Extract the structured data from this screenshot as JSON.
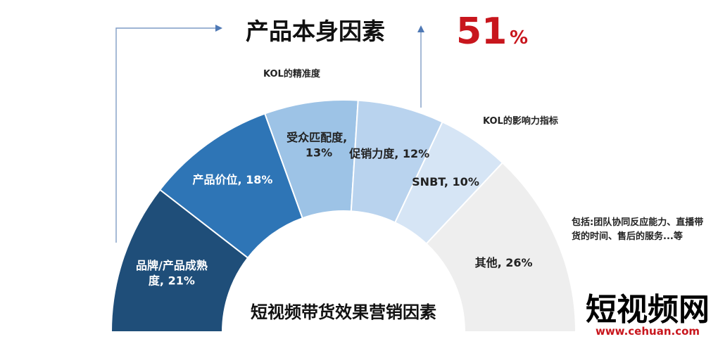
{
  "chart_data": {
    "type": "pie",
    "title": "短视频带货效果营销因素",
    "subtitle": "产品本身因素",
    "highlight": {
      "number": "51",
      "unit": "%"
    },
    "slices": [
      {
        "label": "品牌/产品成熟度, 21%",
        "value": 21,
        "color": "#1f4e79",
        "text_color": "#ffffff"
      },
      {
        "label": "产品价位, 18%",
        "value": 18,
        "color": "#2e75b6",
        "text_color": "#ffffff"
      },
      {
        "label": "受众匹配度, 13%",
        "value": 13,
        "color": "#9dc3e6",
        "text_color": "#222222"
      },
      {
        "label": "促销力度, 12%",
        "value": 12,
        "color": "#b9d3ee",
        "text_color": "#222222"
      },
      {
        "label": "SNBT, 10%",
        "value": 10,
        "color": "#d6e5f5",
        "text_color": "#222222"
      },
      {
        "label": "其他, 26%",
        "value": 26,
        "color": "#eeeeee",
        "text_color": "#222222"
      }
    ],
    "annotations": [
      "KOL的精准度",
      "KOL的影响力指标",
      "包括:团队协同反应能力、直播带货的时间、售后的服务...等"
    ]
  },
  "brand": {
    "name": "短视频网",
    "site": "www.cehuan.com"
  }
}
